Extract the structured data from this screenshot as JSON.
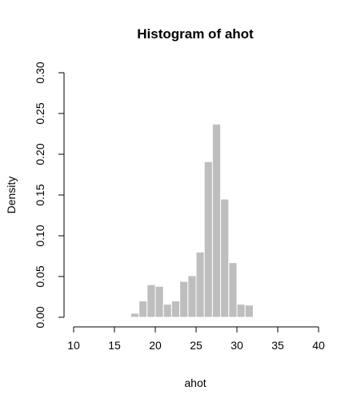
{
  "chart_data": {
    "type": "bar",
    "title": "Histogram of ahot",
    "xlabel": "ahot",
    "ylabel": "Density",
    "xlim": [
      10,
      40
    ],
    "ylim": [
      0,
      0.3
    ],
    "x_ticks": [
      10,
      15,
      20,
      25,
      30,
      35,
      40
    ],
    "y_ticks": [
      0.0,
      0.05,
      0.1,
      0.15,
      0.2,
      0.25,
      0.3
    ],
    "x_tick_labels": [
      "10",
      "15",
      "20",
      "25",
      "30",
      "35",
      "40"
    ],
    "y_tick_labels": [
      "0.00",
      "0.05",
      "0.10",
      "0.15",
      "0.20",
      "0.25",
      "0.30"
    ],
    "bin_width": 1,
    "bin_starts": [
      13,
      16,
      17,
      18,
      19,
      20,
      21,
      22,
      23,
      24,
      25,
      26,
      27,
      28,
      29,
      30,
      31,
      32
    ],
    "values": [
      0.001,
      0.001,
      0.005,
      0.02,
      0.04,
      0.038,
      0.016,
      0.02,
      0.044,
      0.051,
      0.08,
      0.191,
      0.237,
      0.145,
      0.067,
      0.016,
      0.015,
      0.001
    ],
    "grid": false,
    "colors": {
      "bar_fill": "#bebebe",
      "bar_border": "#ffffff",
      "axis": "#000000"
    }
  }
}
